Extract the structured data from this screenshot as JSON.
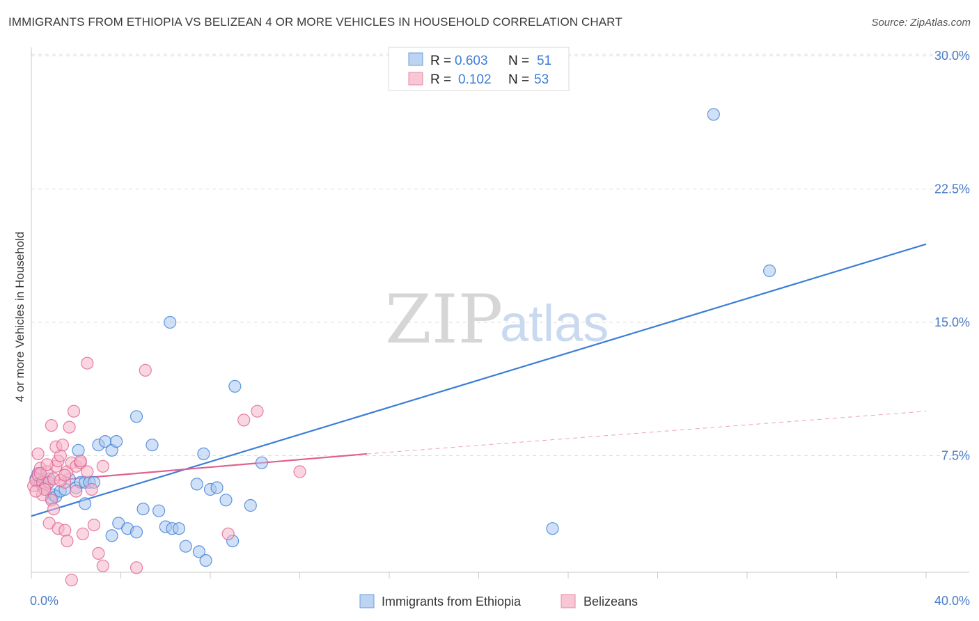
{
  "title": "IMMIGRANTS FROM ETHIOPIA VS BELIZEAN 4 OR MORE VEHICLES IN HOUSEHOLD CORRELATION CHART",
  "source": "Source: ZipAtlas.com",
  "watermark": {
    "zip": "ZIP",
    "atlas": "atlas"
  },
  "colors": {
    "blue": "#3b7dd8",
    "blue_fill": "#a9c7ef",
    "pink": "#e0608f",
    "pink_fill": "#f5b4c8",
    "tick": "#4a7cc7",
    "grid": "#dcdcdc"
  },
  "chart_data": {
    "type": "scatter",
    "title": "IMMIGRANTS FROM ETHIOPIA VS BELIZEAN 4 OR MORE VEHICLES IN HOUSEHOLD CORRELATION CHART",
    "xlabel": "",
    "ylabel": "4 or more Vehicles in Household",
    "xlim": [
      0,
      40
    ],
    "ylim": [
      0,
      31
    ],
    "x_tick_labels": [
      "0.0%",
      "40.0%"
    ],
    "y_ticks": [
      7.5,
      15.0,
      22.5,
      30.0
    ],
    "y_tick_labels": [
      "7.5%",
      "15.0%",
      "22.5%",
      "30.0%"
    ],
    "legend": [
      {
        "r_label": "R =",
        "r_value": "0.603",
        "n_label": "N =",
        "n_value": "51"
      },
      {
        "r_label": "R =",
        "r_value": "0.102",
        "n_label": "N =",
        "n_value": "53"
      }
    ],
    "series": [
      {
        "name": "Immigrants from Ethiopia",
        "color": "#3b7dd8",
        "points": [
          [
            0.2,
            6.2
          ],
          [
            0.3,
            6.5
          ],
          [
            0.4,
            6.0
          ],
          [
            0.5,
            5.8
          ],
          [
            0.6,
            6.1
          ],
          [
            0.7,
            5.9
          ],
          [
            0.8,
            6.2
          ],
          [
            0.9,
            5.1
          ],
          [
            1.0,
            5.3
          ],
          [
            1.1,
            5.2
          ],
          [
            1.3,
            5.5
          ],
          [
            1.5,
            5.6
          ],
          [
            1.7,
            6.2
          ],
          [
            2.0,
            5.7
          ],
          [
            2.2,
            6.0
          ],
          [
            2.4,
            6.0
          ],
          [
            2.6,
            6.0
          ],
          [
            2.8,
            6.0
          ],
          [
            3.0,
            8.1
          ],
          [
            3.3,
            8.3
          ],
          [
            3.6,
            7.8
          ],
          [
            3.8,
            8.3
          ],
          [
            2.1,
            7.8
          ],
          [
            2.4,
            4.8
          ],
          [
            3.6,
            3.0
          ],
          [
            3.9,
            3.7
          ],
          [
            4.3,
            3.4
          ],
          [
            4.7,
            3.2
          ],
          [
            5.0,
            4.5
          ],
          [
            5.7,
            4.4
          ],
          [
            6.0,
            3.5
          ],
          [
            6.3,
            3.4
          ],
          [
            6.6,
            3.4
          ],
          [
            6.9,
            2.4
          ],
          [
            7.5,
            2.1
          ],
          [
            7.8,
            1.6
          ],
          [
            8.0,
            5.6
          ],
          [
            7.7,
            7.6
          ],
          [
            8.3,
            5.7
          ],
          [
            8.7,
            5.0
          ],
          [
            9.1,
            11.4
          ],
          [
            9.8,
            4.7
          ],
          [
            9.0,
            2.7
          ],
          [
            10.3,
            7.1
          ],
          [
            4.7,
            9.7
          ],
          [
            5.4,
            8.1
          ],
          [
            6.2,
            15.0
          ],
          [
            7.4,
            5.9
          ],
          [
            23.3,
            3.4
          ],
          [
            30.5,
            26.7
          ],
          [
            33.0,
            17.9
          ]
        ],
        "trend": {
          "x0": 0,
          "y0": 4.1,
          "x1": 40,
          "y1": 19.4
        }
      },
      {
        "name": "Belizeans",
        "color": "#e0608f",
        "points": [
          [
            0.1,
            5.8
          ],
          [
            0.2,
            6.1
          ],
          [
            0.3,
            6.4
          ],
          [
            0.3,
            7.6
          ],
          [
            0.4,
            6.8
          ],
          [
            0.5,
            6.0
          ],
          [
            0.6,
            5.7
          ],
          [
            0.7,
            6.6
          ],
          [
            0.8,
            6.0
          ],
          [
            0.9,
            5.0
          ],
          [
            1.0,
            6.2
          ],
          [
            1.1,
            6.9
          ],
          [
            1.2,
            7.2
          ],
          [
            1.3,
            7.5
          ],
          [
            1.5,
            6.0
          ],
          [
            1.6,
            6.6
          ],
          [
            1.8,
            7.1
          ],
          [
            2.0,
            6.9
          ],
          [
            2.2,
            7.1
          ],
          [
            2.5,
            6.6
          ],
          [
            0.9,
            9.2
          ],
          [
            1.1,
            8.0
          ],
          [
            1.4,
            8.1
          ],
          [
            1.7,
            9.1
          ],
          [
            1.9,
            10.0
          ],
          [
            0.8,
            3.7
          ],
          [
            1.2,
            3.4
          ],
          [
            1.5,
            3.3
          ],
          [
            1.6,
            2.7
          ],
          [
            2.3,
            3.1
          ],
          [
            2.8,
            3.6
          ],
          [
            3.0,
            2.0
          ],
          [
            3.2,
            1.3
          ],
          [
            1.8,
            0.5
          ],
          [
            4.7,
            1.2
          ],
          [
            2.5,
            12.7
          ],
          [
            5.1,
            12.3
          ],
          [
            3.2,
            6.9
          ],
          [
            9.5,
            9.5
          ],
          [
            10.1,
            10.0
          ],
          [
            8.8,
            3.1
          ],
          [
            12.0,
            6.6
          ],
          [
            0.5,
            5.3
          ],
          [
            0.6,
            5.6
          ],
          [
            0.4,
            6.5
          ],
          [
            0.2,
            5.5
          ],
          [
            2.0,
            5.5
          ],
          [
            1.3,
            6.1
          ],
          [
            1.5,
            6.4
          ],
          [
            2.2,
            7.2
          ],
          [
            0.7,
            7.0
          ],
          [
            1.0,
            4.5
          ],
          [
            2.7,
            5.6
          ]
        ],
        "trend": {
          "x0": 0,
          "y0": 6.0,
          "x1": 15,
          "y1": 7.6
        },
        "trend_dashed": {
          "x0": 15,
          "y0": 7.6,
          "x1": 40,
          "y1": 10.0
        }
      }
    ]
  }
}
